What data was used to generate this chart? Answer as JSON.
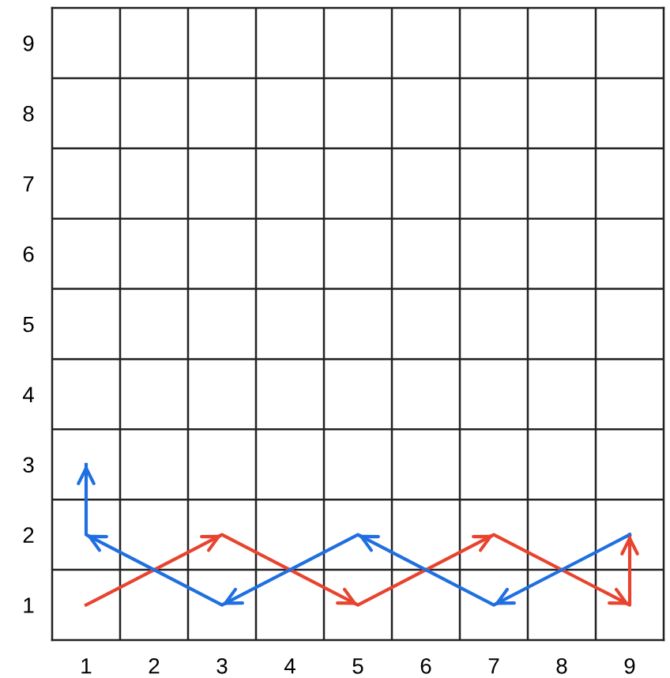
{
  "chart_data": {
    "type": "line",
    "series": [
      {
        "color": "#e8432e",
        "x": [
          1,
          3,
          5,
          7,
          9,
          9
        ],
        "values": [
          1,
          2,
          1,
          2,
          1,
          2
        ]
      },
      {
        "color": "#1f6fe0",
        "x": [
          9,
          7,
          5,
          3,
          1,
          1
        ],
        "values": [
          2,
          1,
          2,
          1,
          2,
          3
        ]
      }
    ],
    "xlim": [
      0.5,
      9.5
    ],
    "ylim": [
      0.5,
      9.5
    ],
    "xticks": [
      1,
      2,
      3,
      4,
      5,
      6,
      7,
      8,
      9,
      {
        "value": 1.5,
        "label": null
      },
      {
        "value": 2.5,
        "label": null
      },
      {
        "value": 3.5,
        "label": null
      },
      {
        "value": 4.5,
        "label": null
      },
      {
        "value": 5.5,
        "label": null
      },
      {
        "value": 6.5,
        "label": null
      },
      {
        "value": 7.5,
        "label": null
      },
      {
        "value": 8.5,
        "label": null
      }
    ],
    "yticks": [
      1,
      2,
      3,
      4,
      5,
      6,
      7,
      8,
      9,
      {
        "value": 1.5,
        "label": null
      },
      {
        "value": 2.5,
        "label": null
      },
      {
        "value": 3.5,
        "label": null
      },
      {
        "value": 4.5,
        "label": null
      },
      {
        "value": 5.5,
        "label": null
      },
      {
        "value": 6.5,
        "label": null
      },
      {
        "value": 7.5,
        "label": null
      },
      {
        "value": 8.5,
        "label": null
      }
    ],
    "grid": true,
    "marker": "none",
    "line_style": "solid"
  }
}
